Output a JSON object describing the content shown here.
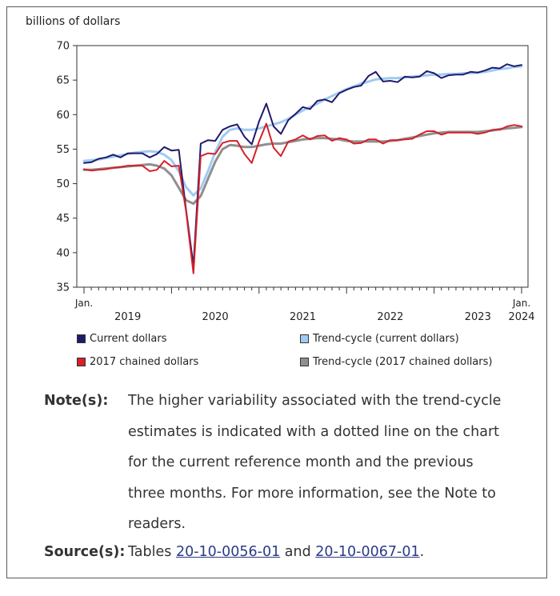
{
  "chart_data": {
    "type": "line",
    "ylabel": "billions of dollars",
    "ylim": [
      35,
      70
    ],
    "yticks": [
      35,
      40,
      45,
      50,
      55,
      60,
      65,
      70
    ],
    "x_start": "2019-01",
    "x_end": "2024-01",
    "x_first_label": "Jan.",
    "x_last_label": "Jan.",
    "year_labels": [
      "2019",
      "2020",
      "2021",
      "2022",
      "2023",
      "2024"
    ],
    "grid": false,
    "legend_position": "bottom",
    "series": [
      {
        "name": "Current dollars",
        "color": "#1f1a6b",
        "values": [
          53.0,
          53.1,
          53.6,
          53.8,
          54.2,
          53.8,
          54.4,
          54.4,
          54.4,
          53.8,
          54.3,
          55.3,
          54.8,
          54.9,
          46.2,
          38.1,
          55.8,
          56.3,
          56.2,
          57.8,
          58.3,
          58.6,
          56.8,
          55.7,
          59.0,
          61.6,
          58.3,
          57.2,
          59.2,
          60.1,
          61.1,
          60.8,
          62.0,
          62.2,
          61.8,
          63.1,
          63.6,
          64.0,
          64.2,
          65.6,
          66.2,
          64.8,
          64.9,
          64.7,
          65.5,
          65.4,
          65.5,
          66.3,
          66.0,
          65.3,
          65.7,
          65.8,
          65.8,
          66.2,
          66.1,
          66.4,
          66.8,
          66.7,
          67.3,
          67.0,
          67.2
        ]
      },
      {
        "name": "2017 chained dollars",
        "color": "#d6202a",
        "values": [
          52.1,
          51.9,
          52.0,
          52.1,
          52.3,
          52.4,
          52.6,
          52.6,
          52.6,
          51.8,
          52.0,
          53.3,
          52.5,
          52.6,
          46.0,
          37.0,
          54.0,
          54.4,
          54.3,
          55.9,
          56.2,
          56.2,
          54.3,
          53.0,
          56.1,
          58.7,
          55.2,
          54.0,
          56.1,
          56.4,
          57.0,
          56.4,
          56.9,
          57.0,
          56.2,
          56.6,
          56.4,
          55.8,
          55.9,
          56.4,
          56.4,
          55.8,
          56.3,
          56.3,
          56.4,
          56.5,
          57.1,
          57.6,
          57.6,
          57.1,
          57.4,
          57.4,
          57.4,
          57.4,
          57.2,
          57.4,
          57.8,
          57.8,
          58.3,
          58.5,
          58.3
        ]
      },
      {
        "name": "Trend-cycle (current dollars)",
        "color": "#9fcbf3",
        "values": [
          53.3,
          53.4,
          53.5,
          53.7,
          53.9,
          54.1,
          54.3,
          54.5,
          54.6,
          54.7,
          54.6,
          54.2,
          53.4,
          51.8,
          49.5,
          48.3,
          49.3,
          51.8,
          54.6,
          56.8,
          57.8,
          58.0,
          57.8,
          57.8,
          58.0,
          58.3,
          58.6,
          58.9,
          59.4,
          60.0,
          60.6,
          61.1,
          61.6,
          62.2,
          62.7,
          63.2,
          63.7,
          64.1,
          64.5,
          64.8,
          65.1,
          65.2,
          65.3,
          65.3,
          65.4,
          65.5,
          65.6,
          65.7,
          65.8,
          65.8,
          65.9,
          65.9,
          66.0,
          66.0,
          66.1,
          66.2,
          66.4,
          66.6,
          66.7,
          66.9,
          67.0
        ]
      },
      {
        "name": "Trend-cycle (2017 chained dollars)",
        "color": "#8f8f8f",
        "values": [
          52.0,
          52.0,
          52.1,
          52.2,
          52.3,
          52.4,
          52.5,
          52.6,
          52.7,
          52.8,
          52.6,
          52.2,
          51.2,
          49.4,
          47.6,
          47.1,
          48.2,
          50.7,
          53.2,
          55.0,
          55.6,
          55.5,
          55.3,
          55.3,
          55.5,
          55.7,
          55.8,
          55.8,
          56.0,
          56.2,
          56.4,
          56.5,
          56.6,
          56.6,
          56.5,
          56.4,
          56.2,
          56.1,
          56.1,
          56.1,
          56.1,
          56.1,
          56.2,
          56.3,
          56.5,
          56.7,
          56.9,
          57.1,
          57.3,
          57.4,
          57.5,
          57.5,
          57.5,
          57.5,
          57.5,
          57.6,
          57.7,
          57.9,
          58.0,
          58.1,
          58.2
        ]
      }
    ]
  },
  "notes": {
    "label": "Note(s):",
    "text": "The higher variability associated with the trend-cycle estimates is indicated with a dotted line on the chart for the current reference month and the previous three months. For more information, see the Note to readers."
  },
  "source": {
    "label": "Source(s):",
    "prefix": "Tables ",
    "link1": "20-10-0056-01",
    "middle": " and ",
    "link2": "20-10-0067-01",
    "suffix": "."
  }
}
